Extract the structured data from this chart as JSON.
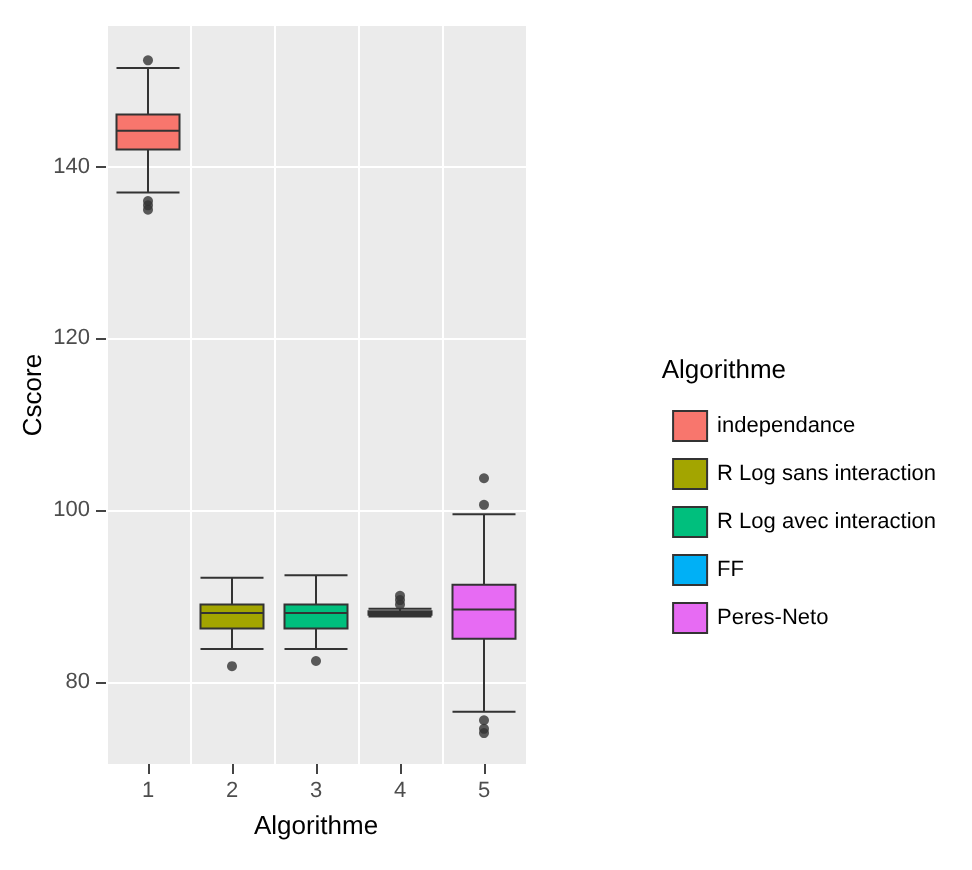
{
  "chart_data": {
    "type": "box",
    "xlabel": "Algorithme",
    "ylabel": "Cscore",
    "legend_title": "Algorithme",
    "categories": [
      "1",
      "2",
      "3",
      "4",
      "5"
    ],
    "ylim": [
      70.4,
      156.4
    ],
    "yticks": [
      80,
      100,
      120,
      140
    ],
    "grid": true,
    "legend": "right",
    "series": [
      {
        "name": "independance",
        "color": "#f8766d",
        "boxes": [
          {
            "low": 137,
            "q1": 142,
            "median": 144.2,
            "q3": 146.1,
            "high": 151.5,
            "outliers": [
              152.4,
              136,
              135.5,
              135
            ]
          },
          null,
          null,
          null,
          null
        ]
      },
      {
        "name": "R Log sans interaction",
        "color": "#a3a500",
        "boxes": [
          null,
          {
            "low": 83.8,
            "q1": 86.2,
            "median": 88,
            "q3": 89,
            "high": 92.1,
            "outliers": [
              81.8
            ]
          },
          null,
          null,
          null
        ]
      },
      {
        "name": "R Log avec interaction",
        "color": "#00bf7d",
        "boxes": [
          null,
          null,
          {
            "low": 83.8,
            "q1": 86.2,
            "median": 88,
            "q3": 89,
            "high": 92.4,
            "outliers": [
              82.4
            ]
          },
          null,
          null
        ]
      },
      {
        "name": "FF",
        "color": "#00b0f6",
        "boxes": [
          null,
          null,
          null,
          {
            "low": 87.6,
            "q1": 87.8,
            "median": 88,
            "q3": 88.2,
            "high": 88.5,
            "outliers": [
              89,
              89.5,
              90
            ]
          },
          null
        ]
      },
      {
        "name": "Peres-Neto",
        "color": "#e76bf3",
        "boxes": [
          null,
          null,
          null,
          null,
          {
            "low": 76.5,
            "q1": 85,
            "median": 88.4,
            "q3": 91.3,
            "high": 99.5,
            "outliers": [
              100.6,
              103.7,
              75.5,
              74.5,
              74
            ]
          }
        ]
      }
    ]
  }
}
